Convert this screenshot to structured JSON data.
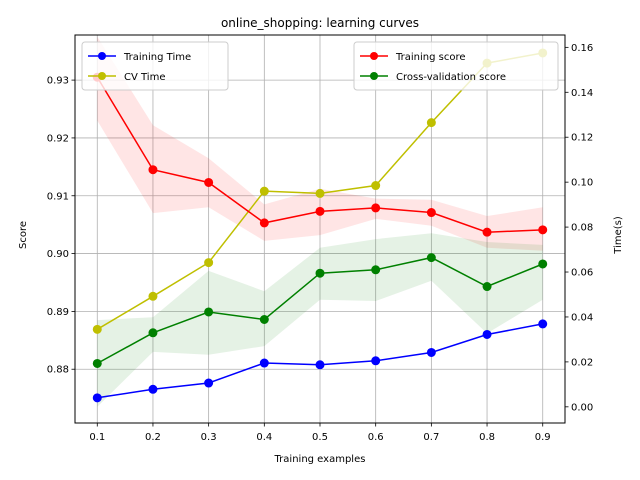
{
  "chart_data": {
    "type": "line",
    "title": "online_shopping: learning curves",
    "xlabel": "Training examples",
    "ylabel_left": "Score",
    "ylabel_right": "Time(s)",
    "x": [
      0.1,
      0.2,
      0.3,
      0.4,
      0.5,
      0.6,
      0.7,
      0.8,
      0.9
    ],
    "xticks": [
      "0.1",
      "0.2",
      "0.3",
      "0.4",
      "0.5",
      "0.6",
      "0.7",
      "0.8",
      "0.9"
    ],
    "xlim": [
      0.06,
      0.94
    ],
    "ylim_left": [
      0.8707,
      0.9378
    ],
    "ylim_right": [
      -0.0072,
      0.1655
    ],
    "yticks_left": [
      "0.88",
      "0.89",
      "0.90",
      "0.91",
      "0.92",
      "0.93"
    ],
    "yticks_left_values": [
      0.88,
      0.89,
      0.9,
      0.91,
      0.92,
      0.93
    ],
    "yticks_right": [
      "0.00",
      "0.02",
      "0.04",
      "0.06",
      "0.08",
      "0.10",
      "0.12",
      "0.14",
      "0.16"
    ],
    "yticks_right_values": [
      0.0,
      0.02,
      0.04,
      0.06,
      0.08,
      0.1,
      0.12,
      0.14,
      0.16
    ],
    "grid": true,
    "bands": [
      {
        "series": "Training score",
        "color": "#ff0000",
        "upper": [
          0.9375,
          0.9222,
          0.9165,
          0.9085,
          0.9112,
          0.9095,
          0.9093,
          0.9065,
          0.908
        ],
        "lower": [
          0.923,
          0.907,
          0.908,
          0.9022,
          0.9032,
          0.906,
          0.9048,
          0.901,
          0.9005
        ]
      },
      {
        "series": "Cross-validation score",
        "color": "#008000",
        "upper": [
          0.8885,
          0.889,
          0.897,
          0.8935,
          0.901,
          0.9025,
          0.9035,
          0.902,
          0.9015
        ],
        "lower": [
          0.8735,
          0.883,
          0.8825,
          0.884,
          0.892,
          0.8918,
          0.8953,
          0.8862,
          0.892
        ]
      }
    ],
    "series": [
      {
        "name": "Training Time",
        "axis": "right",
        "color": "#0000ff",
        "values": [
          0.004,
          0.0078,
          0.0106,
          0.0195,
          0.0187,
          0.0205,
          0.0242,
          0.0322,
          0.0369
        ]
      },
      {
        "name": "CV Time",
        "axis": "right",
        "color": "#bfbf00",
        "values": [
          0.0345,
          0.0492,
          0.0642,
          0.096,
          0.095,
          0.0985,
          0.1265,
          0.153,
          0.1575
        ]
      },
      {
        "name": "Training score",
        "axis": "left",
        "color": "#ff0000",
        "values": [
          0.9305,
          0.9145,
          0.9123,
          0.9053,
          0.9073,
          0.9079,
          0.9071,
          0.9037,
          0.9041
        ]
      },
      {
        "name": "Cross-validation score",
        "axis": "left",
        "color": "#008000",
        "values": [
          0.881,
          0.8863,
          0.8899,
          0.8886,
          0.8966,
          0.8972,
          0.8993,
          0.8943,
          0.8982
        ]
      }
    ],
    "legends": [
      {
        "placement": "top-left",
        "entries": [
          "Training Time",
          "CV Time"
        ]
      },
      {
        "placement": "top-right",
        "entries": [
          "Training score",
          "Cross-validation score"
        ]
      }
    ]
  }
}
